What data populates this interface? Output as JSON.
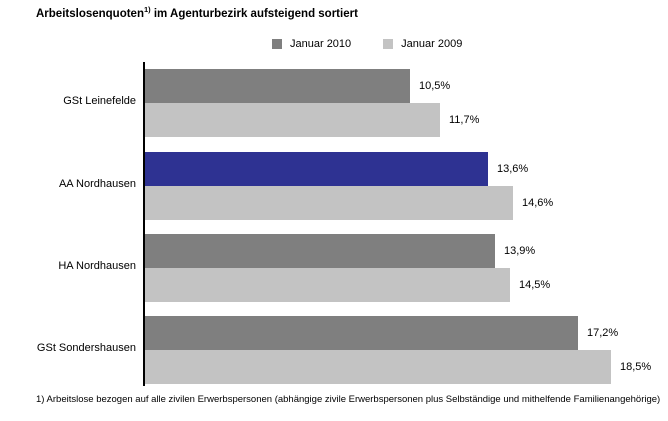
{
  "header": {
    "title_main": "Arbeitslosenquoten",
    "title_sup": "1)",
    "title_tail": " im Agenturbezirk aufsteigend sortiert"
  },
  "legend": {
    "items": [
      {
        "label": "Januar 2010",
        "color": "#7F7F7F"
      },
      {
        "label": "Januar 2009",
        "color": "#C3C3C3"
      }
    ]
  },
  "footnote": "1) Arbeitslose bezogen auf alle zivilen Erwerbspersonen (abhängige zivile Erwerbspersonen plus Selbständige und mithelfende Familienangehörige)",
  "chart_data": {
    "type": "bar",
    "orientation": "horizontal",
    "title": "Arbeitslosenquoten 1) im Agenturbezirk aufsteigend sortiert",
    "categories": [
      "GSt Leinefelde",
      "AA Nordhausen",
      "HA Nordhausen",
      "GSt Sondershausen"
    ],
    "series": [
      {
        "name": "Januar 2010",
        "values": [
          10.5,
          13.6,
          13.9,
          17.2
        ],
        "labels": [
          "10,5%",
          "13,6%",
          "13,9%",
          "17,2%"
        ],
        "color": "#7F7F7F",
        "bar_colors": [
          "#7F7F7F",
          "#2E3292",
          "#7F7F7F",
          "#7F7F7F"
        ]
      },
      {
        "name": "Januar 2009",
        "values": [
          11.7,
          14.6,
          14.5,
          18.5
        ],
        "labels": [
          "11,7%",
          "14,6%",
          "14,5%",
          "18,5%"
        ],
        "color": "#C3C3C3",
        "bar_colors": [
          "#C3C3C3",
          "#C3C3C3",
          "#C3C3C3",
          "#C3C3C3"
        ]
      }
    ],
    "xlim": [
      0,
      20
    ],
    "xlabel": "",
    "ylabel": "",
    "grid": false,
    "legend_position": "top",
    "sort_order": "ascending",
    "highlighted_category": "AA Nordhausen",
    "highlight_color": "#2E3292",
    "value_suffix": "%",
    "decimal_separator": ","
  }
}
